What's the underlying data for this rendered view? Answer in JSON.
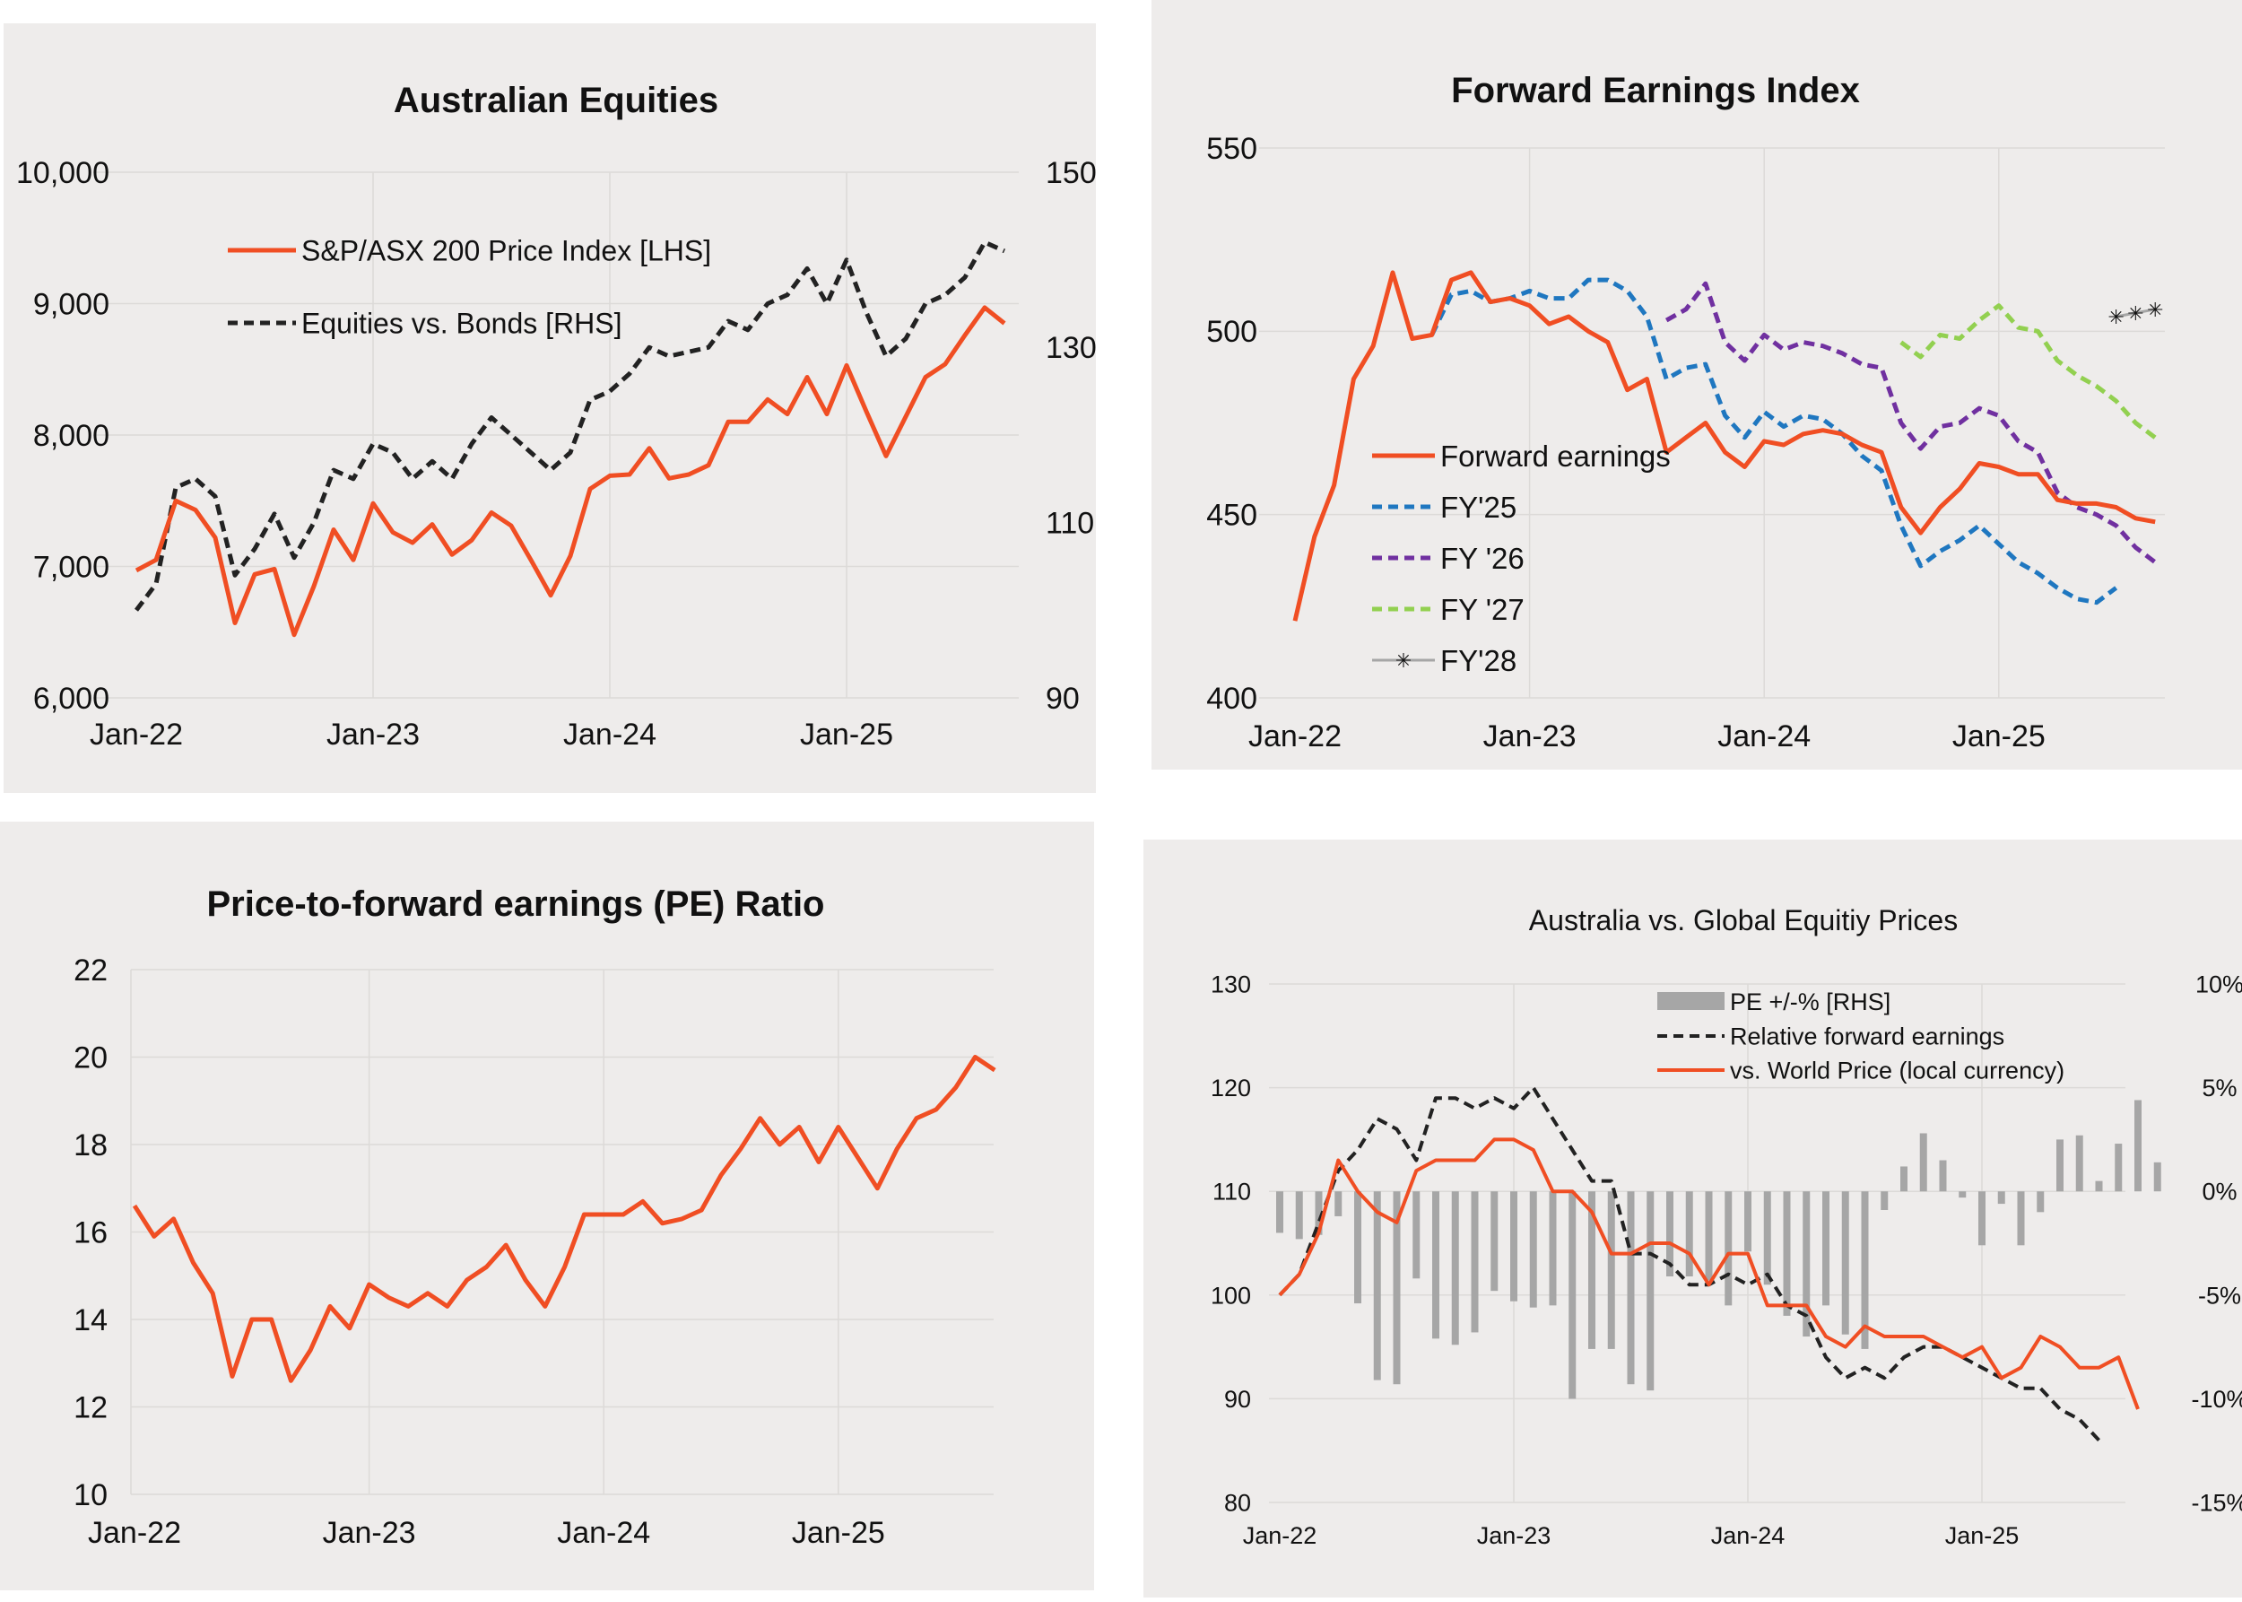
{
  "colors": {
    "orange": "#f04e23",
    "black": "#222222",
    "blue": "#1f77c0",
    "purple": "#7030a0",
    "green": "#92d050",
    "grey": "#a6a6a6",
    "greyline": "#8c8c8c"
  },
  "chart_data": [
    {
      "type": "line",
      "title": "Australian Equities",
      "x_start": "2022-01",
      "x_step": "month",
      "xticks": [
        "Jan-22",
        "Jan-23",
        "Jan-24",
        "Jan-25"
      ],
      "yticks_left": [
        "6,000",
        "7,000",
        "8,000",
        "9,000",
        "10,000"
      ],
      "yticks_right": [
        "90",
        "110",
        "130",
        "150"
      ],
      "ylim_left": [
        6000,
        10000
      ],
      "ylim_right": [
        90,
        150
      ],
      "grid": true,
      "legend": "top-left",
      "series": [
        {
          "name": "S&P/ASX 200 Price Index [LHS]",
          "axis": "left",
          "style": "solid",
          "color": "#f04e23",
          "values": [
            6970,
            7050,
            7500,
            7430,
            7220,
            6570,
            6940,
            6980,
            6480,
            6850,
            7280,
            7050,
            7480,
            7260,
            7180,
            7320,
            7090,
            7200,
            7410,
            7310,
            7050,
            6780,
            7080,
            7590,
            7690,
            7700,
            7900,
            7670,
            7700,
            7770,
            8100,
            8100,
            8270,
            8160,
            8440,
            8160,
            8530,
            8180,
            7840,
            8140,
            8440,
            8540,
            8760,
            8970,
            8850
          ]
        },
        {
          "name": "Equities vs. Bonds [RHS]",
          "axis": "right",
          "style": "dashed",
          "color": "#222222",
          "values": [
            100,
            103,
            114,
            115,
            113,
            104,
            107,
            111,
            106,
            110,
            116,
            115,
            119,
            118,
            115,
            117,
            115,
            119,
            122,
            120,
            118,
            116,
            118,
            124,
            125,
            127,
            130,
            129,
            129.5,
            130,
            133,
            132,
            135,
            136,
            139,
            135,
            140,
            134,
            129,
            131,
            135,
            136,
            138,
            142,
            141
          ]
        }
      ]
    },
    {
      "type": "line",
      "title": "Forward Earnings Index",
      "x_start": "2022-01",
      "x_step": "month",
      "xticks": [
        "Jan-22",
        "Jan-23",
        "Jan-24",
        "Jan-25"
      ],
      "yticks": [
        "400",
        "450",
        "500",
        "550"
      ],
      "ylim": [
        400,
        550
      ],
      "grid": true,
      "legend": "bottom-left",
      "series": [
        {
          "name": "Forward earnings",
          "style": "solid",
          "color": "#f04e23",
          "start": "2022-01",
          "values": [
            421,
            444,
            458,
            487,
            496,
            516,
            498,
            499,
            514,
            516,
            508,
            509,
            507,
            502,
            504,
            500,
            497,
            484,
            487,
            467,
            471,
            475,
            467,
            463,
            470,
            469,
            472,
            473,
            472,
            469,
            467,
            452,
            445,
            452,
            457,
            464,
            463,
            461,
            461,
            454,
            453,
            453,
            452,
            449,
            448
          ]
        },
        {
          "name": "FY'25",
          "style": "dashed",
          "color": "#1f77c0",
          "start": "2022-08",
          "values": [
            499,
            510,
            511,
            508,
            509,
            511,
            509,
            509,
            514,
            514,
            511,
            504,
            487,
            490,
            491,
            477,
            471,
            478,
            474,
            477,
            476,
            472,
            466,
            462,
            447,
            436,
            440,
            443,
            447,
            442,
            437,
            434,
            430,
            427,
            426,
            430
          ]
        },
        {
          "name": "FY '26",
          "style": "dashed",
          "color": "#7030a0",
          "start": "2023-08",
          "values": [
            503,
            506,
            513,
            497,
            492,
            499,
            495,
            497,
            496,
            494,
            491,
            490,
            475,
            468,
            474,
            475,
            479,
            477,
            470,
            467,
            456,
            452,
            450,
            447,
            441,
            437
          ]
        },
        {
          "name": "FY '27",
          "style": "dashed",
          "color": "#92d050",
          "start": "2024-08",
          "values": [
            497,
            493,
            499,
            498,
            503,
            507,
            501,
            500,
            492,
            488,
            485,
            481,
            475,
            471
          ]
        },
        {
          "name": "FY'28",
          "style": "solid-marker",
          "color": "#a6a6a6",
          "start": "2025-07",
          "values": [
            504,
            505,
            506
          ]
        }
      ]
    },
    {
      "type": "line",
      "title": "Price-to-forward earnings (PE) Ratio",
      "x_start": "2022-01",
      "x_step": "month",
      "xticks": [
        "Jan-22",
        "Jan-23",
        "Jan-24",
        "Jan-25"
      ],
      "yticks": [
        "10",
        "12",
        "14",
        "16",
        "18",
        "20",
        "22"
      ],
      "ylim": [
        10,
        22
      ],
      "grid": true,
      "series": [
        {
          "color": "#f04e23",
          "values": [
            16.6,
            15.9,
            16.3,
            15.3,
            14.6,
            12.7,
            14.0,
            14.0,
            12.6,
            13.3,
            14.3,
            13.8,
            14.8,
            14.5,
            14.3,
            14.6,
            14.3,
            14.9,
            15.2,
            15.7,
            14.9,
            14.3,
            15.2,
            16.4,
            16.4,
            16.4,
            16.7,
            16.2,
            16.3,
            16.5,
            17.3,
            17.9,
            18.6,
            18.0,
            18.4,
            17.6,
            18.4,
            17.7,
            17.0,
            17.9,
            18.6,
            18.8,
            19.3,
            20.0,
            19.7
          ]
        }
      ]
    },
    {
      "type": "bar+line",
      "title": "Australia vs. Global Equitiy Prices",
      "x_start": "2022-01",
      "x_step": "month",
      "xticks": [
        "Jan-22",
        "Jan-23",
        "Jan-24",
        "Jan-25"
      ],
      "yticks_left": [
        "80",
        "90",
        "100",
        "110",
        "120",
        "130"
      ],
      "yticks_right": [
        "-15%",
        "-10%",
        "-5%",
        "0%",
        "5%",
        "10%"
      ],
      "ylim_left": [
        80,
        130
      ],
      "ylim_right": [
        -15,
        10
      ],
      "grid": true,
      "legend": "top-right",
      "series": [
        {
          "name": "PE +/-% [RHS]",
          "type": "bar",
          "axis": "right",
          "color": "#a6a6a6",
          "values": [
            -2.0,
            -2.3,
            -2.1,
            -1.2,
            -5.4,
            -9.1,
            -9.3,
            -4.2,
            -7.1,
            -7.4,
            -6.8,
            -4.8,
            -5.3,
            -5.6,
            -5.5,
            -10.0,
            -7.6,
            -7.6,
            -9.3,
            -9.6,
            -4.1,
            -4.1,
            -4.3,
            -5.5,
            -2.9,
            -4.5,
            -6.0,
            -7.0,
            -5.5,
            -6.9,
            -7.6,
            -0.9,
            1.2,
            2.8,
            1.5,
            -0.3,
            -2.6,
            -0.6,
            -2.6,
            -1.0,
            2.5,
            2.7,
            0.5,
            2.3,
            4.4,
            1.4
          ]
        },
        {
          "name": "Relative forward earnings",
          "type": "line",
          "axis": "left",
          "style": "dashed",
          "color": "#222222",
          "values": [
            100,
            102,
            107,
            112,
            114,
            117,
            116,
            113,
            119,
            119,
            118,
            119,
            118,
            120,
            117,
            114,
            111,
            111,
            104,
            104,
            103,
            101,
            101,
            102,
            101,
            102,
            99,
            98,
            94,
            92,
            93,
            92,
            94,
            95,
            95,
            94,
            93,
            92,
            91,
            91,
            89,
            88,
            86
          ]
        },
        {
          "name": "vs. World Price (local currency)",
          "type": "line",
          "axis": "left",
          "style": "solid",
          "color": "#f04e23",
          "values": [
            100,
            102,
            106,
            113,
            110,
            108,
            107,
            112,
            113,
            113,
            113,
            115,
            115,
            114,
            110,
            110,
            108,
            104,
            104,
            105,
            105,
            104,
            101,
            104,
            104,
            99,
            99,
            99,
            96,
            95,
            97,
            96,
            96,
            96,
            95,
            94,
            95,
            92,
            93,
            96,
            95,
            93,
            93,
            94,
            89
          ]
        }
      ]
    }
  ]
}
